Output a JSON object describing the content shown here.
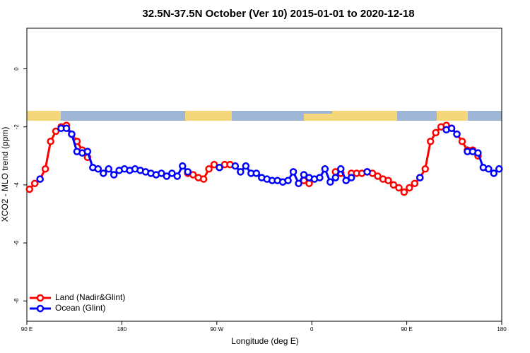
{
  "chart_data": {
    "type": "line",
    "title": "32.5N-37.5N October (Ver 10)   2015-01-01 to 2020-12-18",
    "xlabel": "Longitude (deg E)",
    "ylabel": "XCO2 - MLO trend (ppm)",
    "xlim": [
      90,
      540
    ],
    "ylim": [
      -8.7,
      1.4
    ],
    "xticks": [
      {
        "value": 90,
        "label": "90 E"
      },
      180,
      {
        "value": 270,
        "label": "90 W"
      },
      {
        "value": 360,
        "label": "0"
      },
      {
        "value": 450,
        "label": "90 E"
      },
      {
        "value": 540,
        "label": "180"
      }
    ],
    "yticks": [
      0,
      -2,
      -4,
      -6,
      -8
    ],
    "legend": "bottom-left",
    "x": [
      92.5,
      97.5,
      102.5,
      107.5,
      112.5,
      117.5,
      122.5,
      127.5,
      132.5,
      137.5,
      142.5,
      147.5,
      152.5,
      157.5,
      162.5,
      167.5,
      172.5,
      177.5,
      182.5,
      187.5,
      192.5,
      197.5,
      202.5,
      207.5,
      212.5,
      217.5,
      222.5,
      227.5,
      232.5,
      237.5,
      242.5,
      247.5,
      252.5,
      257.5,
      262.5,
      267.5,
      272.5,
      277.5,
      282.5,
      287.5,
      292.5,
      297.5,
      302.5,
      307.5,
      312.5,
      317.5,
      322.5,
      327.5,
      332.5,
      337.5,
      342.5,
      347.5,
      352.5,
      357.5,
      362.5,
      367.5,
      372.5,
      377.5,
      382.5,
      387.5,
      392.5,
      397.5,
      402.5,
      407.5,
      412.5,
      417.5,
      422.5,
      427.5,
      432.5,
      437.5,
      442.5,
      447.5,
      452.5,
      457.5,
      462.5,
      467.5,
      472.5,
      477.5,
      482.5,
      487.5,
      492.5,
      497.5,
      502.5,
      507.5,
      512.5,
      517.5,
      522.5,
      527.5,
      532.5,
      537.5
    ],
    "series": [
      {
        "name": "Land (Nadir&Glint)",
        "color": "#ff0000",
        "values": [
          -4.15,
          -3.95,
          -3.8,
          -3.45,
          -2.5,
          -2.15,
          -2.0,
          -1.95,
          -2.25,
          -2.5,
          -2.8,
          -3.05,
          null,
          null,
          null,
          null,
          null,
          null,
          null,
          null,
          null,
          null,
          null,
          null,
          null,
          null,
          null,
          null,
          null,
          null,
          -3.6,
          -3.65,
          -3.75,
          -3.8,
          -3.45,
          -3.3,
          -3.4,
          -3.3,
          -3.3,
          null,
          null,
          null,
          null,
          null,
          null,
          null,
          null,
          null,
          null,
          null,
          null,
          null,
          -3.85,
          -3.95,
          null,
          null,
          null,
          null,
          -3.55,
          -3.6,
          null,
          -3.6,
          -3.6,
          -3.6,
          -3.55,
          -3.6,
          -3.7,
          -3.8,
          -3.85,
          -4.0,
          -4.1,
          -4.25,
          -4.1,
          -3.95,
          -3.75,
          -3.45,
          -2.5,
          -2.2,
          -2.0,
          -1.95,
          -2.05,
          -2.25,
          -2.5,
          -2.8,
          -2.8,
          -3.0,
          null,
          null,
          null,
          null
        ]
      },
      {
        "name": "Ocean (Glint)",
        "color": "#0000ff",
        "values": [
          null,
          null,
          -3.8,
          null,
          null,
          null,
          -2.05,
          -2.05,
          -2.25,
          -2.85,
          -2.9,
          -2.85,
          -3.4,
          -3.45,
          -3.6,
          -3.45,
          -3.65,
          -3.5,
          -3.45,
          -3.5,
          -3.45,
          -3.5,
          -3.55,
          -3.6,
          -3.65,
          -3.6,
          -3.7,
          -3.6,
          -3.7,
          -3.35,
          -3.55,
          null,
          null,
          null,
          null,
          null,
          -3.4,
          null,
          null,
          -3.35,
          -3.55,
          -3.35,
          -3.6,
          -3.6,
          -3.75,
          -3.8,
          -3.85,
          -3.85,
          -3.9,
          -3.85,
          -3.55,
          -3.95,
          -3.65,
          -3.75,
          -3.8,
          -3.75,
          -3.45,
          -3.9,
          -3.75,
          -3.45,
          -3.85,
          -3.75,
          null,
          null,
          -3.55,
          null,
          null,
          null,
          null,
          null,
          null,
          null,
          null,
          null,
          -3.75,
          null,
          null,
          null,
          null,
          -2.1,
          -2.05,
          -2.25,
          null,
          -2.85,
          -2.85,
          -2.9,
          -3.4,
          -3.45,
          -3.6,
          -3.45
        ]
      }
    ]
  }
}
